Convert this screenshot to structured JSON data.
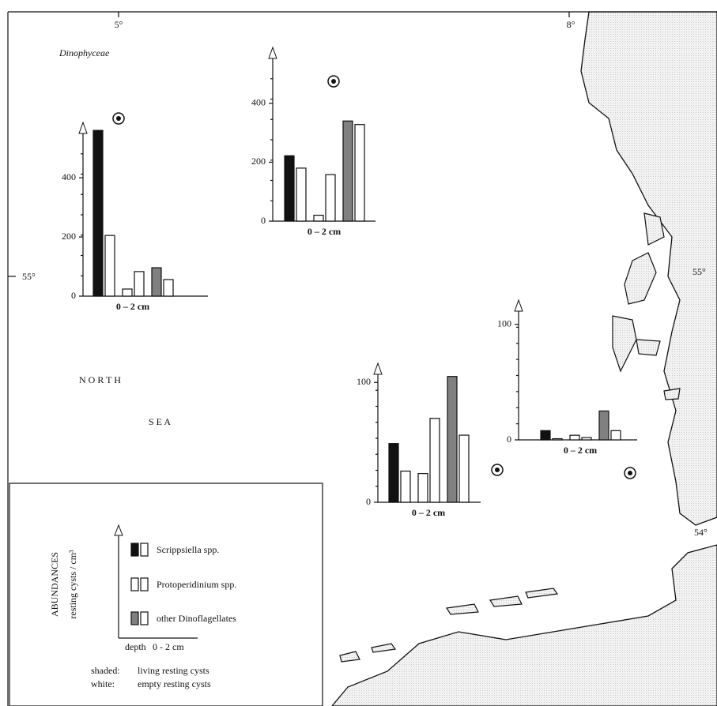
{
  "map": {
    "title": "Dinophyceae",
    "longitudes": [
      "5°",
      "8°"
    ],
    "latitudes": {
      "left": "55°",
      "right": [
        "55°",
        "54°"
      ]
    },
    "sea": [
      "N O R T H",
      "S E A"
    ]
  },
  "chart_data": [
    {
      "type": "bar",
      "xlabel": "0 – 2 cm",
      "values": [
        560,
        205,
        24,
        83,
        96,
        56
      ],
      "colors": [
        "#111111",
        "#ffffff",
        "#ffffff",
        "#ffffff",
        "#808080",
        "#ffffff"
      ],
      "ylim": [
        0,
        587
      ],
      "yticks": [
        0,
        200,
        400
      ]
    },
    {
      "type": "bar",
      "xlabel": "0 – 2 cm",
      "values": [
        222,
        180,
        20,
        158,
        340,
        328
      ],
      "colors": [
        "#111111",
        "#ffffff",
        "#ffffff",
        "#ffffff",
        "#808080",
        "#ffffff"
      ],
      "ylim": [
        0,
        590
      ],
      "yticks": [
        0,
        200,
        400
      ]
    },
    {
      "type": "bar",
      "xlabel": "0 – 2 cm",
      "values": [
        49,
        26,
        24,
        70,
        105,
        56
      ],
      "colors": [
        "#111111",
        "#ffffff",
        "#ffffff",
        "#ffffff",
        "#808080",
        "#ffffff"
      ],
      "ylim": [
        0,
        116
      ],
      "yticks": [
        0,
        100
      ]
    },
    {
      "type": "bar",
      "xlabel": "0 – 2 cm",
      "values": [
        8,
        1,
        4,
        2,
        25,
        8
      ],
      "colors": [
        "#111111",
        "#ffffff",
        "#ffffff",
        "#ffffff",
        "#808080",
        "#ffffff"
      ],
      "ylim": [
        0,
        121
      ],
      "yticks": [
        0,
        100
      ]
    }
  ],
  "legend": {
    "title": "ABUNDANCES",
    "unit": "resting cysts / cm³",
    "entries": [
      "Scrippsiella spp.",
      "Protoperidinium spp.",
      "other Dinoflagellates"
    ],
    "depth": "depth",
    "depth_range": "0 - 2 cm",
    "notes": [
      [
        "shaded:",
        "living resting cysts"
      ],
      [
        "white:",
        "empty resting cysts"
      ]
    ]
  }
}
